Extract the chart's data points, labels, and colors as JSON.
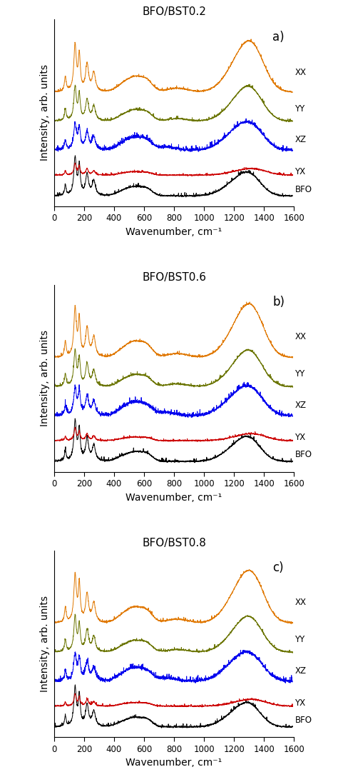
{
  "panels": [
    {
      "title": "BFO/BST0.2",
      "label": "a)"
    },
    {
      "title": "BFO/BST0.6",
      "label": "b)"
    },
    {
      "title": "BFO/BST0.8",
      "label": "c)"
    }
  ],
  "series_order": [
    "BFO",
    "YX",
    "XZ",
    "YY",
    "XX"
  ],
  "colors": {
    "XX": "#E07800",
    "YY": "#6B7500",
    "XZ": "#0000EE",
    "YX": "#CC0000",
    "BFO": "#000000"
  },
  "offsets": [
    0.0,
    1.0,
    2.2,
    3.6,
    5.0
  ],
  "xlabel": "Wavenumber, cm⁻¹",
  "ylabel": "Intensity, arb. units",
  "xlim": [
    0,
    1600
  ],
  "ylim": [
    -0.5,
    8.5
  ],
  "linewidth": 0.7,
  "figsize": [
    4.74,
    10.81
  ],
  "dpi": 100
}
